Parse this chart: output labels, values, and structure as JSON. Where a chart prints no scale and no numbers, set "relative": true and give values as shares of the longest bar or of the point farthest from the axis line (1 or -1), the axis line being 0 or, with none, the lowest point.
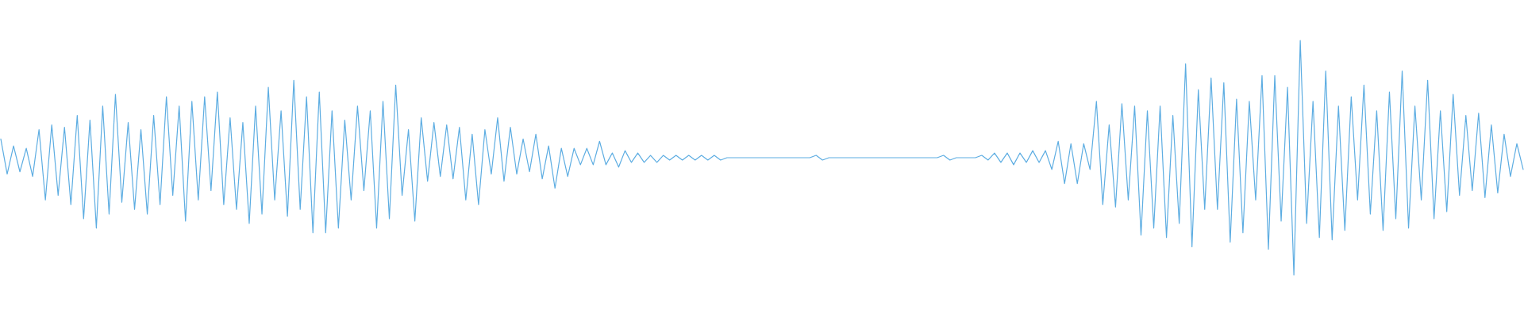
{
  "chart_data": {
    "type": "line",
    "relative": true,
    "tick_labels": false,
    "color": "#5dade2",
    "categories": [
      null,
      null,
      null,
      null,
      null,
      null,
      null,
      null,
      null,
      null,
      null,
      null,
      null,
      null,
      null,
      null,
      null,
      null,
      null,
      null,
      null,
      null,
      null,
      null,
      null,
      null,
      null,
      null,
      null,
      null,
      null,
      null,
      null,
      null,
      null,
      null,
      null,
      null,
      null,
      null,
      null,
      null,
      null,
      null,
      null,
      null,
      null,
      null,
      null,
      null,
      null,
      null,
      null,
      null,
      null,
      null,
      null,
      null,
      null,
      null,
      null,
      null,
      null,
      null,
      null,
      null,
      null,
      null,
      null,
      null,
      null,
      null,
      null,
      null,
      null,
      null,
      null,
      null,
      null,
      null,
      null,
      null,
      null,
      null,
      null,
      null,
      null,
      null,
      null,
      null,
      null,
      null,
      null,
      null,
      null,
      null,
      null,
      null,
      null,
      null,
      null,
      null,
      null,
      null,
      null,
      null,
      null,
      null,
      null,
      null,
      null,
      null,
      null,
      null,
      null,
      null,
      null,
      null,
      null,
      null,
      null,
      null,
      null,
      null,
      null,
      null,
      null,
      null,
      null,
      null,
      null,
      null,
      null,
      null,
      null,
      null,
      null,
      null,
      null,
      null,
      null,
      null,
      null,
      null,
      null,
      null,
      null,
      null,
      null,
      null,
      null,
      null,
      null,
      null,
      null,
      null,
      null,
      null,
      null,
      null,
      null,
      null,
      null,
      null,
      null,
      null,
      null,
      null,
      null,
      null,
      null,
      null,
      null,
      null,
      null,
      null,
      null,
      null,
      null,
      null,
      null,
      null,
      null,
      null,
      null,
      null,
      null,
      null,
      null,
      null,
      null,
      null,
      null,
      null,
      null,
      null,
      null,
      null,
      null,
      null,
      null,
      null,
      null,
      null,
      null,
      null,
      null,
      null,
      null,
      null,
      null,
      null,
      null,
      null,
      null,
      null,
      null,
      null,
      null,
      null,
      null,
      null,
      null,
      null,
      null,
      null,
      null,
      null,
      null,
      null,
      null,
      null,
      null,
      null,
      null,
      null,
      null,
      null,
      null,
      null
    ],
    "values": [
      0.58,
      0.43,
      0.55,
      0.44,
      0.54,
      0.42,
      0.62,
      0.32,
      0.64,
      0.34,
      0.63,
      0.3,
      0.68,
      0.24,
      0.66,
      0.2,
      0.72,
      0.26,
      0.77,
      0.31,
      0.65,
      0.28,
      0.62,
      0.26,
      0.68,
      0.3,
      0.76,
      0.34,
      0.72,
      0.23,
      0.74,
      0.32,
      0.76,
      0.36,
      0.78,
      0.3,
      0.67,
      0.28,
      0.65,
      0.22,
      0.72,
      0.26,
      0.8,
      0.32,
      0.7,
      0.25,
      0.83,
      0.28,
      0.76,
      0.18,
      0.78,
      0.18,
      0.7,
      0.2,
      0.66,
      0.32,
      0.72,
      0.36,
      0.7,
      0.2,
      0.74,
      0.24,
      0.81,
      0.34,
      0.62,
      0.23,
      0.67,
      0.4,
      0.65,
      0.42,
      0.64,
      0.41,
      0.63,
      0.32,
      0.6,
      0.3,
      0.62,
      0.43,
      0.67,
      0.4,
      0.63,
      0.43,
      0.58,
      0.44,
      0.6,
      0.41,
      0.55,
      0.37,
      0.54,
      0.42,
      0.54,
      0.47,
      0.54,
      0.47,
      0.57,
      0.47,
      0.52,
      0.46,
      0.53,
      0.48,
      0.52,
      0.48,
      0.51,
      0.48,
      0.51,
      0.49,
      0.51,
      0.49,
      0.51,
      0.49,
      0.51,
      0.49,
      0.51,
      0.49,
      0.5,
      0.5,
      0.5,
      0.5,
      0.5,
      0.5,
      0.5,
      0.5,
      0.5,
      0.5,
      0.5,
      0.5,
      0.5,
      0.5,
      0.51,
      0.49,
      0.5,
      0.5,
      0.5,
      0.5,
      0.5,
      0.5,
      0.5,
      0.5,
      0.5,
      0.5,
      0.5,
      0.5,
      0.5,
      0.5,
      0.5,
      0.5,
      0.5,
      0.5,
      0.51,
      0.49,
      0.5,
      0.5,
      0.5,
      0.5,
      0.51,
      0.49,
      0.52,
      0.48,
      0.52,
      0.47,
      0.52,
      0.48,
      0.53,
      0.48,
      0.53,
      0.45,
      0.57,
      0.39,
      0.56,
      0.39,
      0.56,
      0.45,
      0.74,
      0.3,
      0.64,
      0.29,
      0.73,
      0.32,
      0.72,
      0.17,
      0.7,
      0.2,
      0.72,
      0.16,
      0.68,
      0.22,
      0.9,
      0.12,
      0.79,
      0.28,
      0.84,
      0.28,
      0.82,
      0.14,
      0.75,
      0.18,
      0.74,
      0.32,
      0.85,
      0.11,
      0.85,
      0.23,
      0.8,
      0.0,
      1.0,
      0.22,
      0.74,
      0.16,
      0.87,
      0.15,
      0.72,
      0.19,
      0.76,
      0.32,
      0.81,
      0.26,
      0.7,
      0.19,
      0.78,
      0.24,
      0.87,
      0.2,
      0.72,
      0.32,
      0.83,
      0.24,
      0.7,
      0.27,
      0.77,
      0.34,
      0.68,
      0.36,
      0.69,
      0.33,
      0.64,
      0.35,
      0.6,
      0.42,
      0.56,
      0.45
    ]
  }
}
